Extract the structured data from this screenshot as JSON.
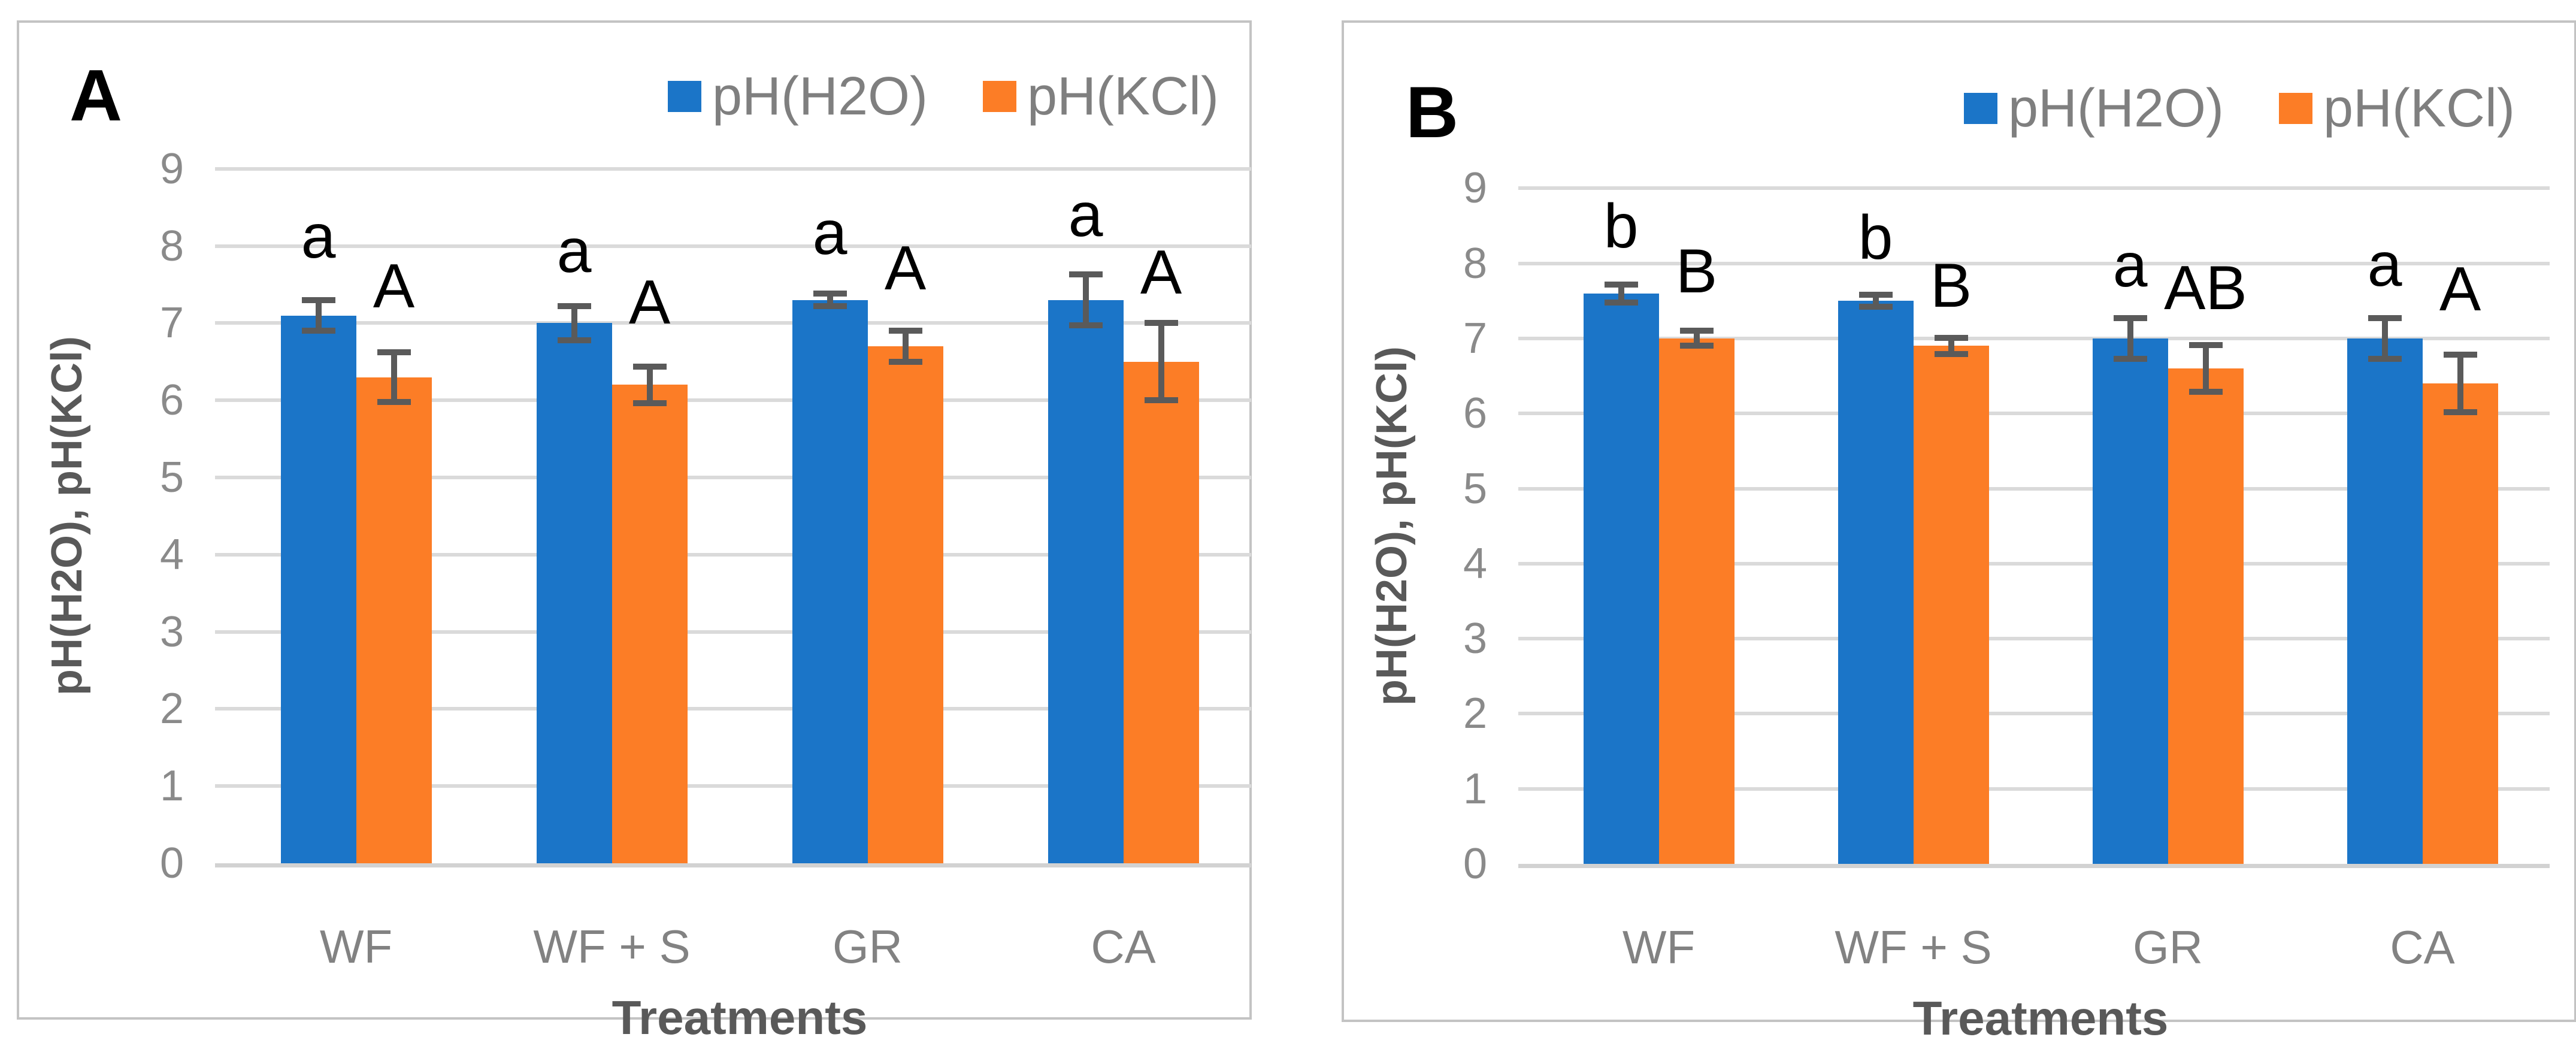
{
  "figure": {
    "series_colors": {
      "ph_h2o": "#1b75c8",
      "ph_kcl": "#fc7d26"
    },
    "error_bar_color": "#5a5a5a",
    "gridline_color": "#dadada",
    "text_gray": "#7f7f7f",
    "axis_title_gray": "#595959"
  },
  "legend": {
    "items": [
      {
        "label": "pH(H2O)",
        "color": "#1b75c8"
      },
      {
        "label": "pH(KCl)",
        "color": "#fc7d26"
      }
    ]
  },
  "chart_data": [
    {
      "type": "bar",
      "panel_label": "A",
      "categories": [
        "WF",
        "WF + S",
        "GR",
        "CA"
      ],
      "series": [
        {
          "name": "pH(H2O)",
          "color": "#1b75c8",
          "values": [
            7.1,
            7.0,
            7.3,
            7.3
          ],
          "errors": [
            0.2,
            0.22,
            0.08,
            0.33
          ],
          "sig_letters": [
            "a",
            "a",
            "a",
            "a"
          ],
          "sig_letter_y": [
            7.9,
            7.72,
            7.95,
            8.18
          ]
        },
        {
          "name": "pH(KCl)",
          "color": "#fc7d26",
          "values": [
            6.3,
            6.2,
            6.7,
            6.5
          ],
          "errors": [
            0.32,
            0.24,
            0.2,
            0.5
          ],
          "sig_letters": [
            "A",
            "A",
            "A",
            "A"
          ],
          "sig_letter_y": [
            7.26,
            7.05,
            7.49,
            7.44
          ]
        }
      ],
      "xlabel": "Treatments",
      "ylabel": "pH(H2O), pH(KCl)",
      "ylim": [
        0,
        9
      ],
      "yticks": [
        0,
        1,
        2,
        3,
        4,
        5,
        6,
        7,
        8,
        9
      ],
      "grid": true,
      "legend_position": "top-right"
    },
    {
      "type": "bar",
      "panel_label": "B",
      "categories": [
        "WF",
        "WF + S",
        "GR",
        "CA"
      ],
      "series": [
        {
          "name": "pH(H2O)",
          "color": "#1b75c8",
          "values": [
            7.6,
            7.5,
            7.0,
            7.0
          ],
          "errors": [
            0.12,
            0.08,
            0.27,
            0.27
          ],
          "sig_letters": [
            "b",
            "b",
            "a",
            "a"
          ],
          "sig_letter_y": [
            8.27,
            8.12,
            7.75,
            7.76
          ]
        },
        {
          "name": "pH(KCl)",
          "color": "#fc7d26",
          "values": [
            7.0,
            6.9,
            6.6,
            6.4
          ],
          "errors": [
            0.1,
            0.11,
            0.31,
            0.38
          ],
          "sig_letters": [
            "B",
            "B",
            "AB",
            "A"
          ],
          "sig_letter_y": [
            7.67,
            7.48,
            7.45,
            7.43
          ]
        }
      ],
      "xlabel": "Treatments",
      "ylabel": "pH(H2O), pH(KCl)",
      "ylim": [
        0,
        9
      ],
      "yticks": [
        0,
        1,
        2,
        3,
        4,
        5,
        6,
        7,
        8,
        9
      ],
      "grid": true,
      "legend_position": "top-right"
    }
  ]
}
